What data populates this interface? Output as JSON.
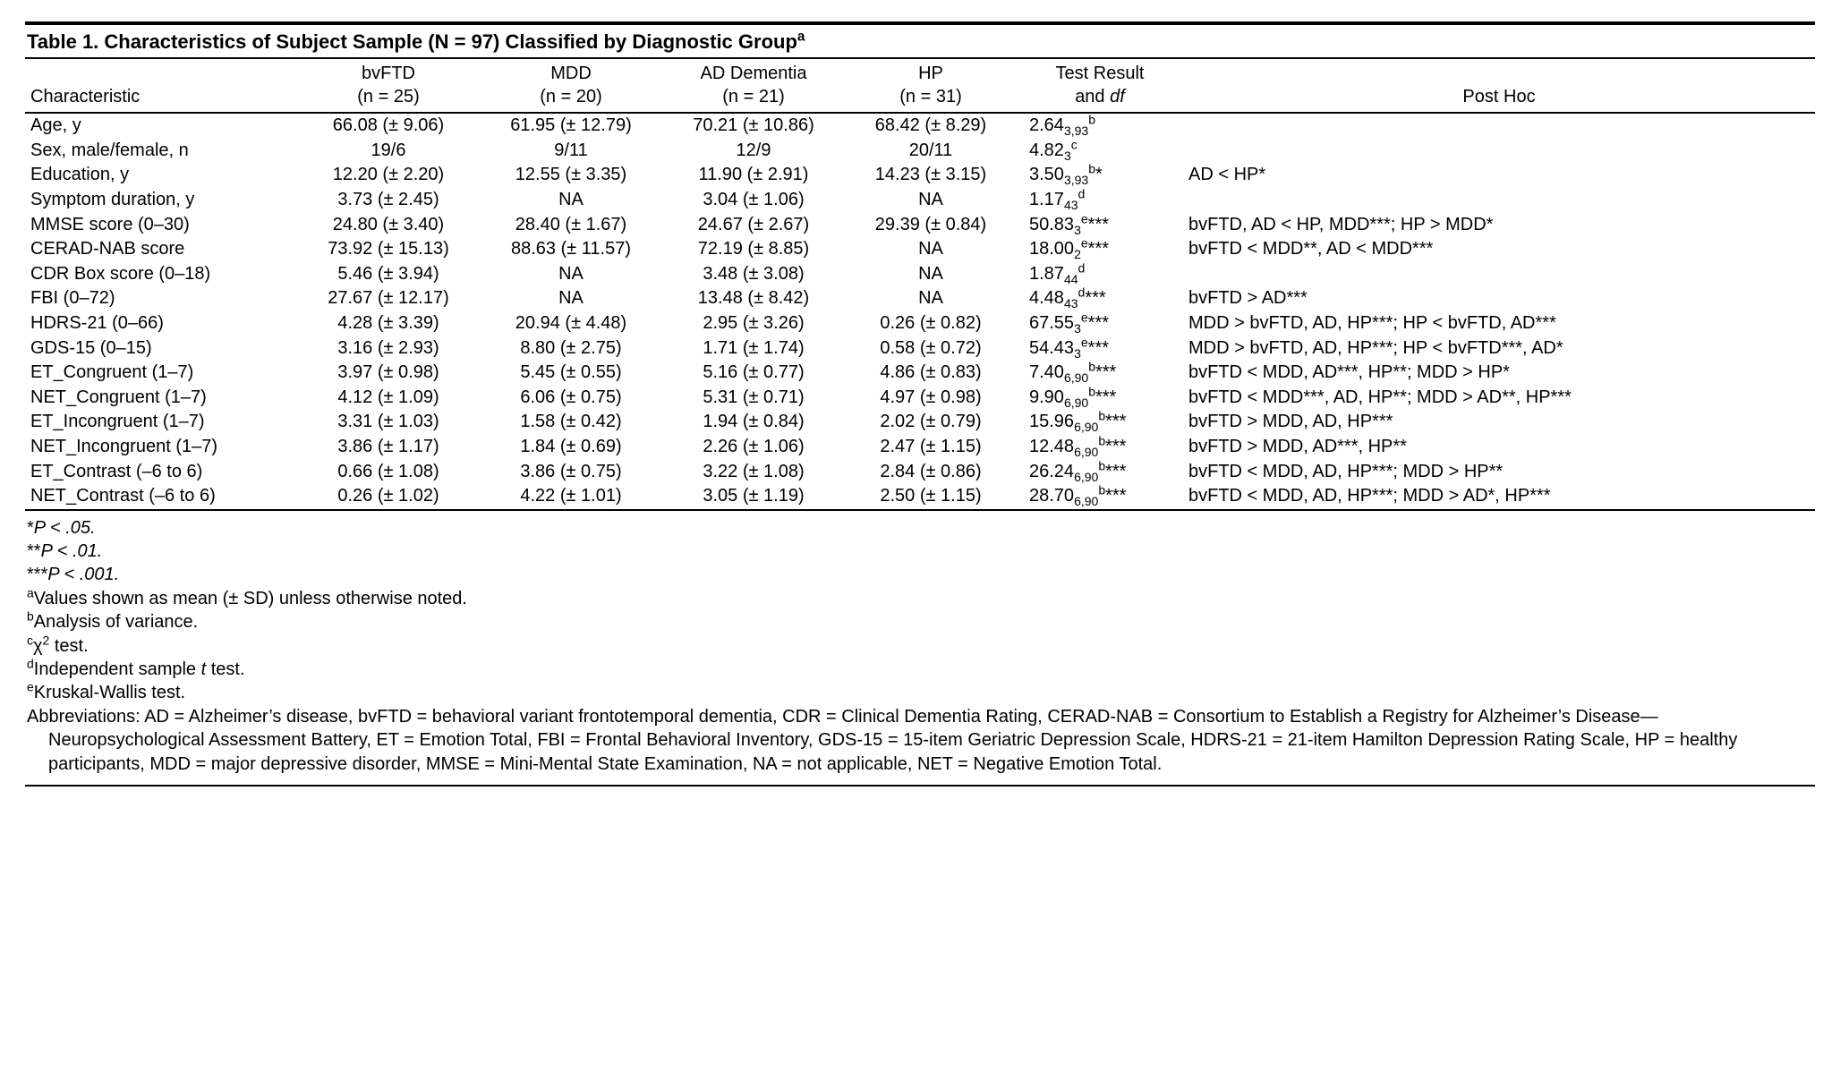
{
  "colors": {
    "text": "#000000",
    "background": "#ffffff",
    "rule": "#000000"
  },
  "typography": {
    "family": "Myriad Pro / Segoe UI / Arial",
    "body_size_pt": 15,
    "title_weight": 700
  },
  "title": "Table 1. Characteristics of Subject Sample (N = 97) Classified by Diagnostic Group",
  "title_super": "a",
  "columns": {
    "characteristic": "Characteristic",
    "bvftd_line1": "bvFTD",
    "bvftd_line2": "(n = 25)",
    "mdd_line1": "MDD",
    "mdd_line2": "(n = 20)",
    "ad_line1": "AD Dementia",
    "ad_line2": "(n = 21)",
    "hp_line1": "HP",
    "hp_line2": "(n = 31)",
    "test_line1": "Test Result",
    "test_line2": "and ",
    "test_line2_em": "df",
    "posthoc": "Post Hoc"
  },
  "rows": [
    {
      "char": "Age, y",
      "bv": "66.08 (± 9.06)",
      "mdd": "61.95 (± 12.79)",
      "ad": "70.21 (± 10.86)",
      "hp": "68.42 (± 8.29)",
      "test_val": "2.64",
      "test_sub": "3,93",
      "test_sup": "b",
      "test_after": "",
      "post": ""
    },
    {
      "char": "Sex, male/female, n",
      "bv": "19/6",
      "mdd": "9/11",
      "ad": "12/9",
      "hp": "20/11",
      "test_val": "4.82",
      "test_sub": "3",
      "test_sup": "c",
      "test_after": "",
      "post": ""
    },
    {
      "char": "Education, y",
      "bv": "12.20 (± 2.20)",
      "mdd": "12.55 (± 3.35)",
      "ad": "11.90 (± 2.91)",
      "hp": "14.23 (± 3.15)",
      "test_val": "3.50",
      "test_sub": "3,93",
      "test_sup": "b",
      "test_after": "*",
      "post": "AD < HP*"
    },
    {
      "char": "Symptom duration, y",
      "bv": "3.73 (± 2.45)",
      "mdd": "NA",
      "ad": "3.04 (± 1.06)",
      "hp": "NA",
      "test_val": "1.17",
      "test_sub": "43",
      "test_sup": "d",
      "test_after": "",
      "post": ""
    },
    {
      "char": "MMSE score (0–30)",
      "bv": "24.80 (± 3.40)",
      "mdd": "28.40 (± 1.67)",
      "ad": "24.67 (± 2.67)",
      "hp": "29.39 (± 0.84)",
      "test_val": "50.83",
      "test_sub": "3",
      "test_sup": "e",
      "test_after": "***",
      "post": "bvFTD, AD < HP, MDD***; HP > MDD*"
    },
    {
      "char": "CERAD-NAB score",
      "bv": "73.92 (± 15.13)",
      "mdd": "88.63 (± 11.57)",
      "ad": "72.19 (± 8.85)",
      "hp": "NA",
      "test_val": "18.00",
      "test_sub": "2",
      "test_sup": "e",
      "test_after": "***",
      "post": "bvFTD < MDD**, AD < MDD***"
    },
    {
      "char": "CDR Box score (0–18)",
      "bv": "5.46 (± 3.94)",
      "mdd": "NA",
      "ad": "3.48 (± 3.08)",
      "hp": "NA",
      "test_val": "1.87",
      "test_sub": "44",
      "test_sup": "d",
      "test_after": "",
      "post": ""
    },
    {
      "char": "FBI (0–72)",
      "bv": "27.67 (± 12.17)",
      "mdd": "NA",
      "ad": "13.48 (± 8.42)",
      "hp": "NA",
      "test_val": "4.48",
      "test_sub": "43",
      "test_sup": "d",
      "test_after": "***",
      "post": "bvFTD > AD***"
    },
    {
      "char": "HDRS-21 (0–66)",
      "bv": "4.28 (± 3.39)",
      "mdd": "20.94 (± 4.48)",
      "ad": "2.95 (± 3.26)",
      "hp": "0.26 (± 0.82)",
      "test_val": "67.55",
      "test_sub": "3",
      "test_sup": "e",
      "test_after": "***",
      "post": "MDD > bvFTD, AD, HP***; HP < bvFTD, AD***"
    },
    {
      "char": "GDS-15 (0–15)",
      "bv": "3.16 (± 2.93)",
      "mdd": "8.80 (± 2.75)",
      "ad": "1.71 (± 1.74)",
      "hp": "0.58 (± 0.72)",
      "test_val": "54.43",
      "test_sub": "3",
      "test_sup": "e",
      "test_after": "***",
      "post": "MDD > bvFTD, AD, HP***; HP < bvFTD***, AD*"
    },
    {
      "char": "ET_Congruent (1–7)",
      "bv": "3.97 (± 0.98)",
      "mdd": "5.45 (± 0.55)",
      "ad": "5.16 (± 0.77)",
      "hp": "4.86 (± 0.83)",
      "test_val": "7.40",
      "test_sub": "6,90",
      "test_sup": "b",
      "test_after": "***",
      "post": "bvFTD < MDD, AD***, HP**; MDD > HP*"
    },
    {
      "char": "NET_Congruent (1–7)",
      "bv": "4.12 (± 1.09)",
      "mdd": "6.06 (± 0.75)",
      "ad": "5.31 (± 0.71)",
      "hp": "4.97 (± 0.98)",
      "test_val": "9.90",
      "test_sub": "6,90",
      "test_sup": "b",
      "test_after": "***",
      "post": "bvFTD < MDD***, AD, HP**; MDD > AD**, HP***"
    },
    {
      "char": "ET_Incongruent (1–7)",
      "bv": "3.31 (± 1.03)",
      "mdd": "1.58 (± 0.42)",
      "ad": "1.94 (± 0.84)",
      "hp": "2.02 (± 0.79)",
      "test_val": "15.96",
      "test_sub": "6,90",
      "test_sup": "b",
      "test_after": "***",
      "post": "bvFTD > MDD, AD, HP***"
    },
    {
      "char": "NET_Incongruent (1–7)",
      "bv": "3.86 (± 1.17)",
      "mdd": "1.84 (± 0.69)",
      "ad": "2.26 (± 1.06)",
      "hp": "2.47 (± 1.15)",
      "test_val": "12.48",
      "test_sub": "6,90",
      "test_sup": "b",
      "test_after": "***",
      "post": "bvFTD > MDD, AD***, HP**"
    },
    {
      "char": "ET_Contrast (–6 to 6)",
      "bv": "0.66 (± 1.08)",
      "mdd": "3.86 (± 0.75)",
      "ad": "3.22 (± 1.08)",
      "hp": "2.84 (± 0.86)",
      "test_val": "26.24",
      "test_sub": "6,90",
      "test_sup": "b",
      "test_after": "***",
      "post": "bvFTD < MDD, AD, HP***; MDD > HP**"
    },
    {
      "char": "NET_Contrast (–6 to 6)",
      "bv": "0.26 (± 1.02)",
      "mdd": "4.22 (± 1.01)",
      "ad": "3.05 (± 1.19)",
      "hp": "2.50 (± 1.15)",
      "test_val": "28.70",
      "test_sub": "6,90",
      "test_sup": "b",
      "test_after": "***",
      "post": "bvFTD < MDD, AD, HP***; MDD > AD*, HP***"
    }
  ],
  "footnotes": {
    "p05_stars": "*",
    "p05_rest": "P < .05.",
    "p01_stars": "**",
    "p01_rest": "P < .01.",
    "p001_stars": "***",
    "p001_rest": "P < .001.",
    "a_sup": "a",
    "a": "Values shown as mean (± SD) unless otherwise noted.",
    "b_sup": "b",
    "b": "Analysis of variance.",
    "c_sup": "c",
    "c_chi": "χ",
    "c_sup2": "2",
    "c_rest": " test.",
    "d_sup": "d",
    "d_pre": "Independent sample ",
    "d_em": "t",
    "d_post": " test.",
    "e_sup": "e",
    "e": "Kruskal-Wallis test.",
    "abbr": "Abbreviations: AD = Alzheimer’s disease, bvFTD = behavioral variant frontotemporal dementia, CDR = Clinical Dementia Rating, CERAD-NAB = Consortium to Establish a Registry for Alzheimer’s Disease—Neuropsychological Assessment Battery, ET = Emotion Total, FBI = Frontal Behavioral Inventory, GDS-15 = 15-item Geriatric Depression Scale, HDRS-21 = 21-item Hamilton Depression Rating Scale, HP = healthy participants, MDD = major depressive disorder, MMSE = Mini-Mental State Examination, NA = not applicable, NET = Negative Emotion Total."
  }
}
